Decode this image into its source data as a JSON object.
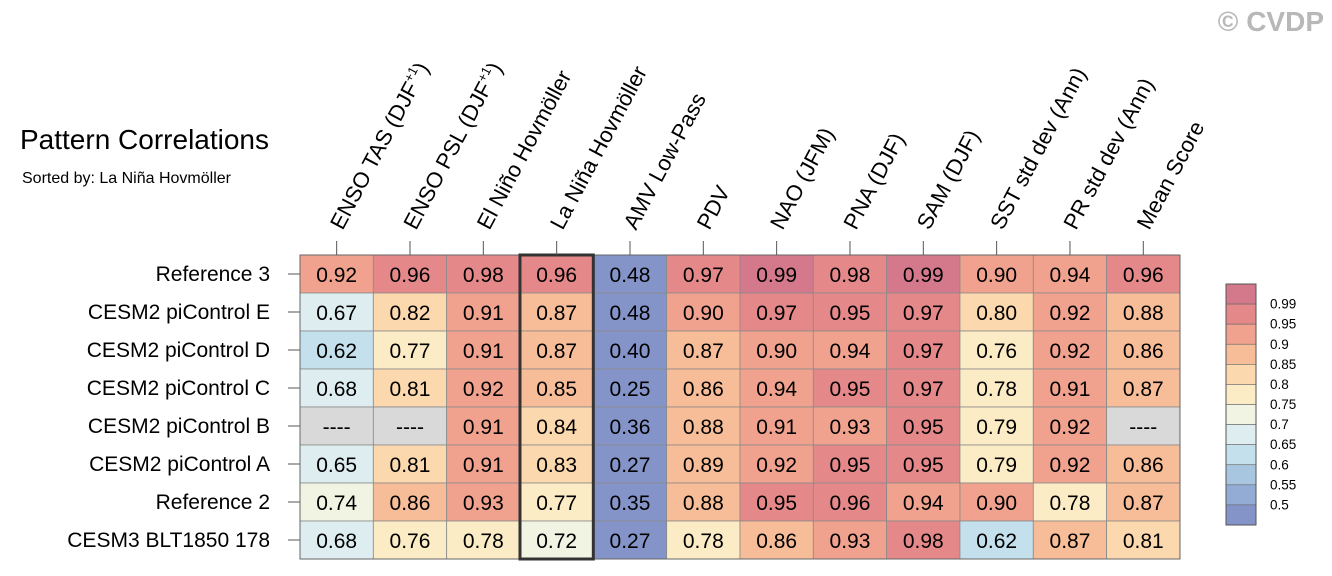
{
  "watermark": "© CVDP",
  "chart_data": {
    "type": "heatmap",
    "title": "Pattern Correlations",
    "subtitle": "Sorted by: La Niña Hovmöller",
    "highlighted_column": "La Niña Hovmöller",
    "columns": [
      {
        "main": "ENSO TAS (DJF",
        "sup": "+1",
        "tail": ")"
      },
      {
        "main": "ENSO PSL (DJF",
        "sup": "+1",
        "tail": ")"
      },
      {
        "main": "El Niño Hovmöller",
        "sup": "",
        "tail": ""
      },
      {
        "main": "La Niña Hovmöller",
        "sup": "",
        "tail": ""
      },
      {
        "main": "AMV Low-Pass",
        "sup": "",
        "tail": ""
      },
      {
        "main": "PDV",
        "sup": "",
        "tail": ""
      },
      {
        "main": "NAO (JFM)",
        "sup": "",
        "tail": ""
      },
      {
        "main": "PNA (DJF)",
        "sup": "",
        "tail": ""
      },
      {
        "main": "SAM (DJF)",
        "sup": "",
        "tail": ""
      },
      {
        "main": "SST std dev (Ann)",
        "sup": "",
        "tail": ""
      },
      {
        "main": "PR std dev (Ann)",
        "sup": "",
        "tail": ""
      },
      {
        "main": "Mean Score",
        "sup": "",
        "tail": ""
      }
    ],
    "rows": [
      {
        "label": "Reference 3",
        "values": [
          "0.92",
          "0.96",
          "0.98",
          "0.96",
          "0.48",
          "0.97",
          "0.99",
          "0.98",
          "0.99",
          "0.90",
          "0.94",
          "0.96"
        ]
      },
      {
        "label": "CESM2 piControl E",
        "values": [
          "0.67",
          "0.82",
          "0.91",
          "0.87",
          "0.48",
          "0.90",
          "0.97",
          "0.95",
          "0.97",
          "0.80",
          "0.92",
          "0.88"
        ]
      },
      {
        "label": "CESM2 piControl D",
        "values": [
          "0.62",
          "0.77",
          "0.91",
          "0.87",
          "0.40",
          "0.87",
          "0.90",
          "0.94",
          "0.97",
          "0.76",
          "0.92",
          "0.86"
        ]
      },
      {
        "label": "CESM2 piControl C",
        "values": [
          "0.68",
          "0.81",
          "0.92",
          "0.85",
          "0.25",
          "0.86",
          "0.94",
          "0.95",
          "0.97",
          "0.78",
          "0.91",
          "0.87"
        ]
      },
      {
        "label": "CESM2 piControl B",
        "values": [
          "----",
          "----",
          "0.91",
          "0.84",
          "0.36",
          "0.88",
          "0.91",
          "0.93",
          "0.95",
          "0.79",
          "0.92",
          "----"
        ]
      },
      {
        "label": "CESM2 piControl A",
        "values": [
          "0.65",
          "0.81",
          "0.91",
          "0.83",
          "0.27",
          "0.89",
          "0.92",
          "0.95",
          "0.95",
          "0.79",
          "0.92",
          "0.86"
        ]
      },
      {
        "label": "Reference 2",
        "values": [
          "0.74",
          "0.86",
          "0.93",
          "0.77",
          "0.35",
          "0.88",
          "0.95",
          "0.96",
          "0.94",
          "0.90",
          "0.78",
          "0.87"
        ]
      },
      {
        "label": "CESM3 BLT1850 178",
        "values": [
          "0.68",
          "0.76",
          "0.78",
          "0.72",
          "0.27",
          "0.78",
          "0.86",
          "0.93",
          "0.98",
          "0.62",
          "0.87",
          "0.81"
        ]
      }
    ],
    "colorbar": {
      "labels": [
        "0.99",
        "0.95",
        "0.9",
        "0.85",
        "0.8",
        "0.75",
        "0.7",
        "0.65",
        "0.6",
        "0.55",
        "0.5"
      ],
      "colors": [
        "#d4788c",
        "#e5888a",
        "#f0a28e",
        "#f7bd98",
        "#fbd8ad",
        "#fcecc6",
        "#f1f4e3",
        "#deeef0",
        "#c4e0ec",
        "#a8c6df",
        "#92acd6",
        "#8494c9"
      ],
      "missing_color": "#d9d9d9"
    }
  }
}
